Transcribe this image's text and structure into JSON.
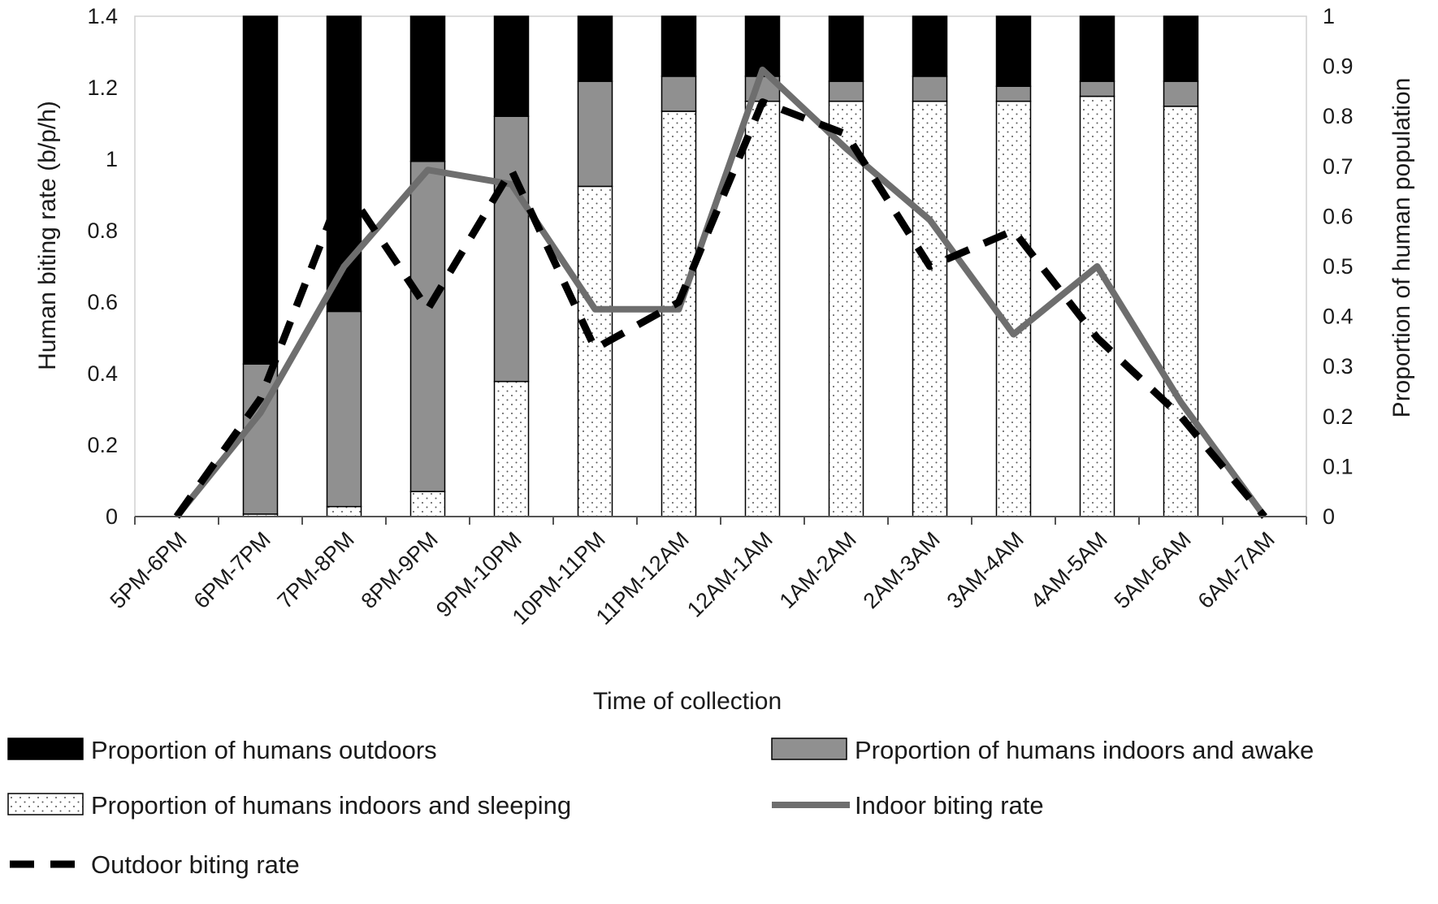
{
  "chart_data": {
    "type": "bar",
    "subtype": "stacked-bar-with-lines",
    "title": "",
    "xlabel": "Time of collection",
    "ylabel_left": "Human biting rate (b/p/h)",
    "ylabel_right": "Proportion of human population",
    "ylim_left": [
      0,
      1.4
    ],
    "ylim_right": [
      0,
      1
    ],
    "yticks_left": [
      "0",
      "0.2",
      "0.4",
      "0.6",
      "0.8",
      "1",
      "1.2",
      "1.4"
    ],
    "yticks_right": [
      "0",
      "0.1",
      "0.2",
      "0.3",
      "0.4",
      "0.5",
      "0.6",
      "0.7",
      "0.8",
      "0.9",
      "1"
    ],
    "grid": false,
    "legend_position": "bottom",
    "categories": [
      "5PM-6PM",
      "6PM-7PM",
      "7PM-8PM",
      "8PM-9PM",
      "9PM-10PM",
      "10PM-11PM",
      "11PM-12AM",
      "12AM-1AM",
      "1AM-2AM",
      "2AM-3AM",
      "3AM-4AM",
      "4AM-5AM",
      "5AM-6AM",
      "6AM-7AM"
    ],
    "bar_series": [
      {
        "name": "Proportion of humans indoors and sleeping",
        "axis": "right",
        "pattern": "dots",
        "color": "#ffffff",
        "values": [
          0,
          0.005,
          0.02,
          0.05,
          0.27,
          0.66,
          0.81,
          0.83,
          0.83,
          0.83,
          0.83,
          0.84,
          0.82,
          0
        ]
      },
      {
        "name": "Proportion of humans indoors and awake",
        "axis": "right",
        "color": "#909090",
        "values": [
          0,
          0.3,
          0.39,
          0.66,
          0.53,
          0.21,
          0.07,
          0.05,
          0.04,
          0.05,
          0.03,
          0.03,
          0.05,
          0
        ]
      },
      {
        "name": "Proportion of humans outdoors",
        "axis": "right",
        "color": "#000000",
        "values": [
          0,
          0.695,
          0.59,
          0.29,
          0.2,
          0.13,
          0.12,
          0.12,
          0.13,
          0.12,
          0.14,
          0.13,
          0.13,
          0
        ]
      }
    ],
    "line_series": [
      {
        "name": "Indoor biting rate",
        "axis": "left",
        "style": "solid",
        "color": "#6e6e6e",
        "values": [
          0,
          0.29,
          0.7,
          0.97,
          0.93,
          0.58,
          0.58,
          1.25,
          1.03,
          0.83,
          0.51,
          0.7,
          0.32,
          0
        ]
      },
      {
        "name": "Outdoor biting rate",
        "axis": "left",
        "style": "dashed",
        "color": "#000000",
        "values": [
          0,
          0.33,
          0.93,
          0.58,
          0.97,
          0.47,
          0.6,
          1.16,
          1.07,
          0.7,
          0.8,
          0.5,
          0.28,
          0
        ]
      }
    ],
    "legend": [
      {
        "label": "Proportion of humans outdoors",
        "kind": "bar",
        "color": "#000000"
      },
      {
        "label": "Proportion of humans indoors and awake",
        "kind": "bar",
        "color": "#909090"
      },
      {
        "label": "Proportion of humans indoors and sleeping",
        "kind": "bar",
        "pattern": "dots",
        "color": "#ffffff"
      },
      {
        "label": "Indoor biting rate",
        "kind": "line",
        "style": "solid",
        "color": "#6e6e6e"
      },
      {
        "label": "Outdoor biting rate",
        "kind": "line",
        "style": "dashed",
        "color": "#000000"
      }
    ]
  }
}
